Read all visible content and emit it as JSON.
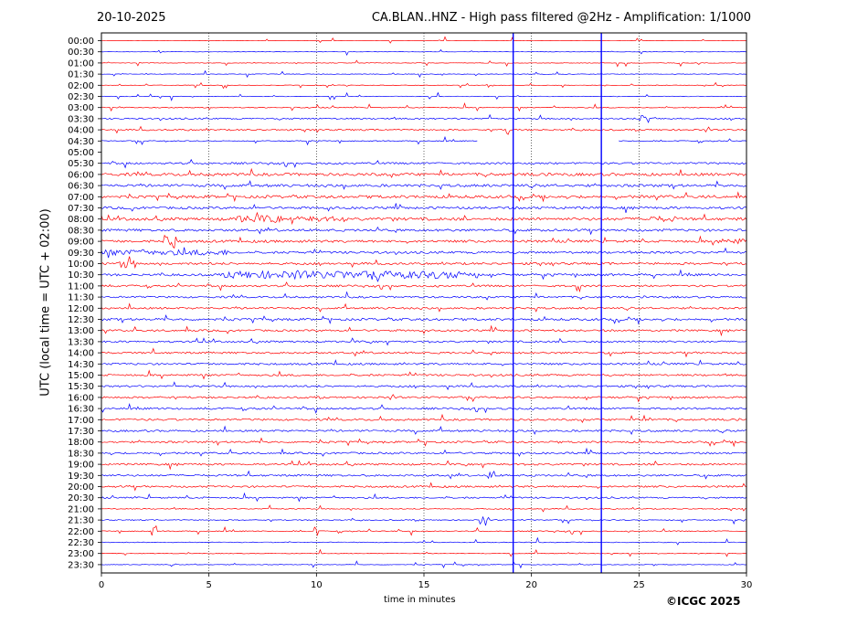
{
  "header": {
    "date": "20-10-2025",
    "title": "CA.BLAN..HNZ - High pass filtered @2Hz - Amplification: 1/1000"
  },
  "footer": {
    "copyright": "©ICGC 2025"
  },
  "chart_data": {
    "type": "line",
    "title": "CA.BLAN..HNZ - High pass filtered @2Hz - Amplification: 1/1000",
    "xlabel": "time in minutes",
    "ylabel": "UTC (local time = UTC + 02:00)",
    "xlim": [
      0,
      30
    ],
    "x_ticks": [
      0,
      5,
      10,
      15,
      20,
      25,
      30
    ],
    "grid": "vertical dotted at every 5 minutes",
    "trace_colors": [
      "#ff0000",
      "#0000ff"
    ],
    "rows": [
      "00:00",
      "00:30",
      "01:00",
      "01:30",
      "02:00",
      "02:30",
      "03:00",
      "03:30",
      "04:00",
      "04:30",
      "05:00",
      "05:30",
      "06:00",
      "06:30",
      "07:00",
      "07:30",
      "08:00",
      "08:30",
      "09:00",
      "09:30",
      "10:00",
      "10:30",
      "11:00",
      "11:30",
      "12:00",
      "12:30",
      "13:00",
      "13:30",
      "14:00",
      "14:30",
      "15:00",
      "15:30",
      "16:00",
      "16:30",
      "17:00",
      "17:30",
      "18:00",
      "18:30",
      "19:00",
      "19:30",
      "20:00",
      "20:30",
      "21:00",
      "21:30",
      "22:00",
      "22:30",
      "23:00",
      "23:30"
    ],
    "row_noise": [
      0.2,
      0.2,
      0.3,
      0.3,
      0.3,
      0.3,
      0.5,
      0.8,
      0.8,
      0.5,
      0.3,
      1.0,
      1.5,
      1.4,
      1.5,
      1.3,
      1.5,
      1.3,
      1.3,
      1.2,
      1.2,
      1.2,
      1.0,
      1.0,
      1.0,
      1.2,
      1.0,
      1.0,
      1.0,
      1.0,
      1.0,
      1.0,
      1.0,
      1.0,
      1.0,
      1.0,
      1.0,
      1.0,
      1.0,
      1.0,
      1.0,
      0.8,
      0.5,
      0.5,
      0.5,
      0.4,
      0.3,
      0.3
    ],
    "events": [
      {
        "row": "08:00",
        "start": 6.2,
        "end": 8.4,
        "amplitude": 4
      },
      {
        "row": "08:00",
        "start": 8.8,
        "end": 11.3,
        "amplitude": 3
      },
      {
        "row": "08:00",
        "start": 25.1,
        "end": 26.8,
        "amplitude": 3
      },
      {
        "row": "09:00",
        "start": 28.6,
        "end": 30.0,
        "amplitude": 3
      },
      {
        "row": "09:00",
        "start": 2.9,
        "end": 3.5,
        "amplitude": 9
      },
      {
        "row": "09:30",
        "start": 0.0,
        "end": 4.0,
        "amplitude": 3
      },
      {
        "row": "09:30",
        "start": 4.1,
        "end": 5.9,
        "amplitude": 3
      },
      {
        "row": "10:00",
        "start": 0.8,
        "end": 1.6,
        "amplitude": 5
      },
      {
        "row": "10:30",
        "start": 5.7,
        "end": 17.5,
        "amplitude": 4
      },
      {
        "row": "03:30",
        "start": 25.0,
        "end": 25.8,
        "amplitude": 5
      },
      {
        "row": "17:00",
        "start": 25.2,
        "end": 25.6,
        "amplitude": 6
      },
      {
        "row": "22:00",
        "start": 2.3,
        "end": 2.6,
        "amplitude": 6
      },
      {
        "row": "21:30",
        "start": 17.6,
        "end": 17.9,
        "amplitude": 6
      },
      {
        "row": "22:00",
        "start": 9.9,
        "end": 10.1,
        "amplitude": 6
      },
      {
        "row": "19:30",
        "start": 17.9,
        "end": 18.3,
        "amplitude": 5
      },
      {
        "row": "04:00",
        "start": 18.8,
        "end": 19.0,
        "amplitude": 5
      },
      {
        "row": "11:00",
        "start": 22.1,
        "end": 22.3,
        "amplitude": 6
      }
    ],
    "gaps": [
      {
        "row": "04:30",
        "start": 17.5,
        "end": 24.0
      },
      {
        "row": "05:00",
        "start": 0.0,
        "end": 30.0
      }
    ],
    "vertical_markers": [
      19.15,
      23.25
    ]
  }
}
